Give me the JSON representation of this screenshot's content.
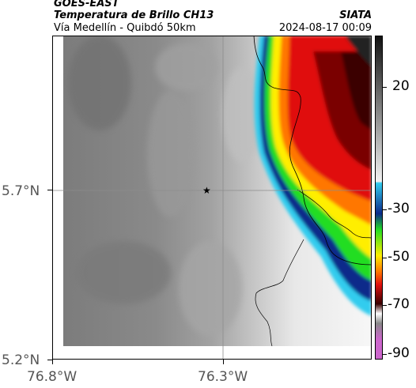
{
  "header": {
    "satellite": "GOES-EAST",
    "product": "Temperatura de Brillo CH13",
    "region": "Vía Medellín - Quibdó 50km",
    "source": "SIATA",
    "datetime": "2024-08-17 00:09"
  },
  "map": {
    "lon_ticks": [
      "76.8°W",
      "76.3°W"
    ],
    "lat_ticks": [
      "5.7°N",
      "5.2°N"
    ],
    "marker": "star-marker"
  },
  "colorbar": {
    "ticks": [
      "20",
      "-30",
      "-50",
      "-70",
      "-90"
    ],
    "colors": {
      "gray_top": "#111111",
      "gray_bottom": "#f2f2f2",
      "cyan": "#33ccee",
      "blue": "#0a2a8a",
      "green": "#22dd22",
      "yellow": "#ffee00",
      "orange": "#ff7700",
      "red": "#e01010",
      "dark_red": "#3a0000",
      "magenta": "#cc66cc"
    }
  }
}
